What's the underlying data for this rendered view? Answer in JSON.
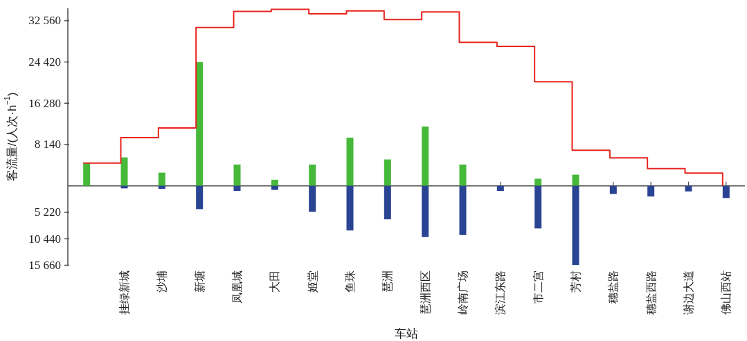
{
  "chart_data": {
    "type": "bar",
    "stacked": true,
    "categories": [
      null,
      "挂绿新城",
      "沙埔",
      "新塘",
      "凤凰城",
      "大田",
      "姬堂",
      "鱼珠",
      "琶洲",
      "琶洲西区",
      "岭南广场",
      "滨江东路",
      "市二宫",
      "芳村",
      "穗盐路",
      "穗盐西路",
      "谢边大道",
      "佛山西站"
    ],
    "series": [
      {
        "color": "#47b93a",
        "values": [
          4500,
          5600,
          2600,
          24400,
          4200,
          1200,
          4200,
          9500,
          5200,
          11700,
          4200,
          null,
          1400,
          2200,
          null,
          null,
          null,
          null
        ]
      },
      {
        "color": "#2a4494",
        "values": [
          null,
          -500,
          -600,
          -4600,
          -1000,
          -800,
          -5100,
          -8800,
          -6600,
          -10100,
          -9700,
          -1000,
          -8400,
          -15600,
          -1600,
          -2100,
          -1100,
          -2400
        ]
      },
      {
        "type": "step",
        "color": "#e8231f",
        "values": [
          4500,
          9500,
          11400,
          31200,
          34400,
          34800,
          33900,
          34500,
          32800,
          34300,
          28300,
          27500,
          20500,
          7000,
          5500,
          3400,
          2500,
          0
        ]
      }
    ],
    "ylim": [
      -15660,
      35000
    ],
    "yticks": [
      {
        "value": -15660,
        "label": "15 660"
      },
      {
        "value": -10440,
        "label": "10 440"
      },
      {
        "value": -5220,
        "label": "5 220"
      },
      {
        "value": 8140,
        "label": "8 140"
      },
      {
        "value": 16280,
        "label": "16 280"
      },
      {
        "value": 24420,
        "label": "24 420"
      },
      {
        "value": 32560,
        "label": "32 560"
      }
    ],
    "ylabel": "客流量/(人次·h$^{−1}$)",
    "xlabel": "车站"
  }
}
